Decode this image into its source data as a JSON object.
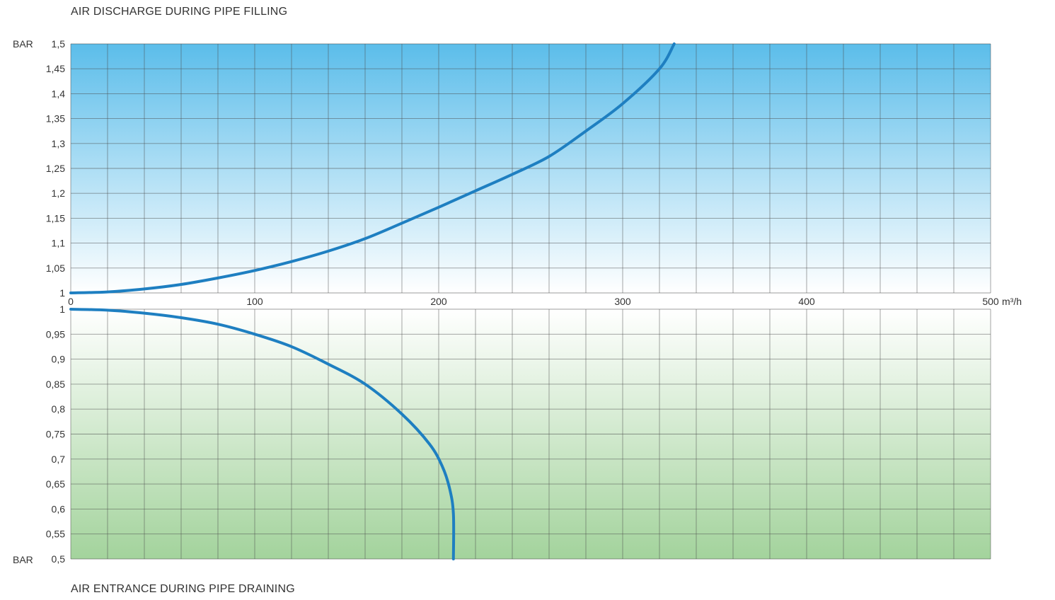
{
  "titles": {
    "top": "AIR DISCHARGE DURING PIPE FILLING",
    "bottom": "AIR ENTRANCE DURING PIPE DRAINING"
  },
  "colors": {
    "curve": "#1e7fc1",
    "top_gradient_start": "#5bbdea",
    "top_gradient_end": "#ffffff",
    "bottom_gradient_start": "#ffffff",
    "bottom_gradient_end": "#a3d39c",
    "grid": "#4a4a4a"
  },
  "chart_data": [
    {
      "type": "line",
      "title": "AIR DISCHARGE DURING PIPE FILLING",
      "xlabel": "m³/h",
      "ylabel": "BAR",
      "xlim": [
        0,
        500
      ],
      "ylim": [
        1,
        1.5
      ],
      "x_ticks": [
        "0",
        "100",
        "200",
        "300",
        "400",
        "500"
      ],
      "y_ticks": [
        "1",
        "1,05",
        "1,1",
        "1,15",
        "1,2",
        "1,25",
        "1,3",
        "1,35",
        "1,4",
        "1,45",
        "1,5"
      ],
      "grid": true,
      "series": [
        {
          "x": [
            0,
            20,
            40,
            60,
            80,
            100,
            120,
            140,
            160,
            180,
            200,
            220,
            240,
            260,
            280,
            300,
            320,
            328
          ],
          "y": [
            1.0,
            1.002,
            1.008,
            1.017,
            1.03,
            1.045,
            1.063,
            1.084,
            1.109,
            1.14,
            1.172,
            1.205,
            1.238,
            1.274,
            1.325,
            1.38,
            1.45,
            1.5
          ]
        }
      ]
    },
    {
      "type": "line",
      "title": "AIR ENTRANCE DURING PIPE DRAINING",
      "xlabel": "m³/h",
      "ylabel": "BAR",
      "xlim": [
        0,
        500
      ],
      "ylim": [
        0.5,
        1
      ],
      "y_ticks": [
        "1",
        "0,95",
        "0,9",
        "0,85",
        "0,8",
        "0,75",
        "0,7",
        "0,65",
        "0,6",
        "0,55",
        "0,5"
      ],
      "grid": true,
      "series": [
        {
          "x": [
            0,
            20,
            40,
            60,
            80,
            100,
            120,
            140,
            160,
            180,
            195,
            202,
            206,
            208,
            208
          ],
          "y": [
            1.0,
            0.998,
            0.992,
            0.983,
            0.97,
            0.95,
            0.925,
            0.89,
            0.85,
            0.79,
            0.73,
            0.685,
            0.64,
            0.59,
            0.5
          ]
        }
      ]
    }
  ],
  "labels": {
    "bar_top": "BAR",
    "bar_bottom": "BAR",
    "unit": "m³/h"
  }
}
